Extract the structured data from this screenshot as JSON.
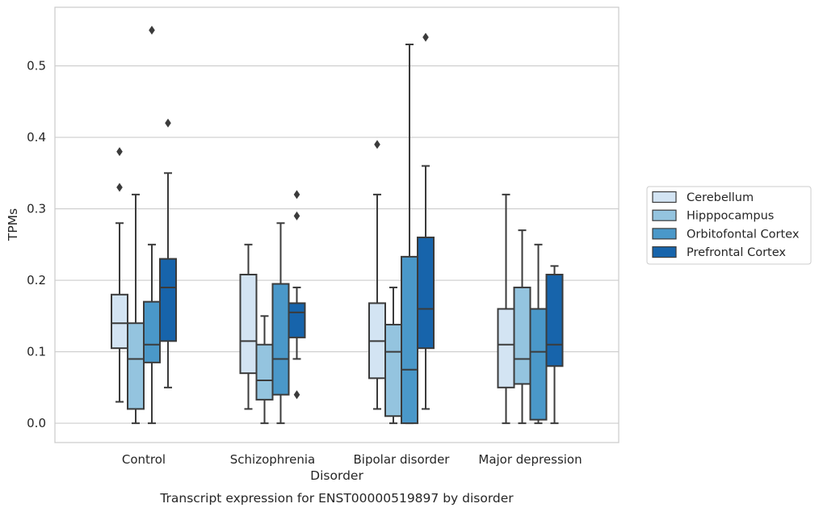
{
  "chart_data": {
    "type": "box",
    "title": "",
    "caption": "Transcript expression for ENST00000519897 by disorder",
    "xlabel": "Disorder",
    "ylabel": "TPMs",
    "ylim": [
      -0.027,
      0.582
    ],
    "yticks": [
      0.0,
      0.1,
      0.2,
      0.3,
      0.4,
      0.5
    ],
    "ytick_labels": [
      "0.0",
      "0.1",
      "0.2",
      "0.3",
      "0.4",
      "0.5"
    ],
    "grid": true,
    "legend_position": "right",
    "categories": [
      "Control",
      "Schizophrenia",
      "Bipolar disorder",
      "Major depression"
    ],
    "series": [
      {
        "name": "Cerebellum",
        "color": "#d3e4f3",
        "boxes": [
          {
            "whislo": 0.03,
            "q1": 0.105,
            "med": 0.14,
            "q3": 0.18,
            "whishi": 0.28,
            "fliers": [
              0.33,
              0.38
            ]
          },
          {
            "whislo": 0.02,
            "q1": 0.07,
            "med": 0.115,
            "q3": 0.208,
            "whishi": 0.25,
            "fliers": []
          },
          {
            "whislo": 0.02,
            "q1": 0.063,
            "med": 0.115,
            "q3": 0.168,
            "whishi": 0.32,
            "fliers": [
              0.39
            ]
          },
          {
            "whislo": 0.0,
            "q1": 0.05,
            "med": 0.11,
            "q3": 0.16,
            "whishi": 0.32,
            "fliers": []
          }
        ]
      },
      {
        "name": "Hipppocampus",
        "color": "#94c4df",
        "boxes": [
          {
            "whislo": 0.0,
            "q1": 0.02,
            "med": 0.09,
            "q3": 0.14,
            "whishi": 0.32,
            "fliers": []
          },
          {
            "whislo": 0.0,
            "q1": 0.033,
            "med": 0.06,
            "q3": 0.11,
            "whishi": 0.15,
            "fliers": []
          },
          {
            "whislo": 0.0,
            "q1": 0.01,
            "med": 0.1,
            "q3": 0.138,
            "whishi": 0.19,
            "fliers": []
          },
          {
            "whislo": 0.0,
            "q1": 0.055,
            "med": 0.09,
            "q3": 0.19,
            "whishi": 0.27,
            "fliers": []
          }
        ]
      },
      {
        "name": "Orbitofontal Cortex",
        "color": "#4a98c9",
        "boxes": [
          {
            "whislo": 0.0,
            "q1": 0.085,
            "med": 0.11,
            "q3": 0.17,
            "whishi": 0.25,
            "fliers": [
              0.55
            ]
          },
          {
            "whislo": 0.0,
            "q1": 0.04,
            "med": 0.09,
            "q3": 0.195,
            "whishi": 0.28,
            "fliers": []
          },
          {
            "whislo": 0.0,
            "q1": 0.0,
            "med": 0.075,
            "q3": 0.233,
            "whishi": 0.53,
            "fliers": []
          },
          {
            "whislo": 0.0,
            "q1": 0.005,
            "med": 0.1,
            "q3": 0.16,
            "whishi": 0.25,
            "fliers": []
          }
        ]
      },
      {
        "name": "Prefrontal Cortex",
        "color": "#1764ab",
        "boxes": [
          {
            "whislo": 0.05,
            "q1": 0.115,
            "med": 0.19,
            "q3": 0.23,
            "whishi": 0.35,
            "fliers": [
              0.42
            ]
          },
          {
            "whislo": 0.09,
            "q1": 0.12,
            "med": 0.155,
            "q3": 0.168,
            "whishi": 0.19,
            "fliers": [
              0.04,
              0.29,
              0.32
            ]
          },
          {
            "whislo": 0.02,
            "q1": 0.105,
            "med": 0.16,
            "q3": 0.26,
            "whishi": 0.36,
            "fliers": [
              0.54
            ]
          },
          {
            "whislo": 0.0,
            "q1": 0.08,
            "med": 0.11,
            "q3": 0.208,
            "whishi": 0.22,
            "fliers": []
          }
        ]
      }
    ]
  }
}
